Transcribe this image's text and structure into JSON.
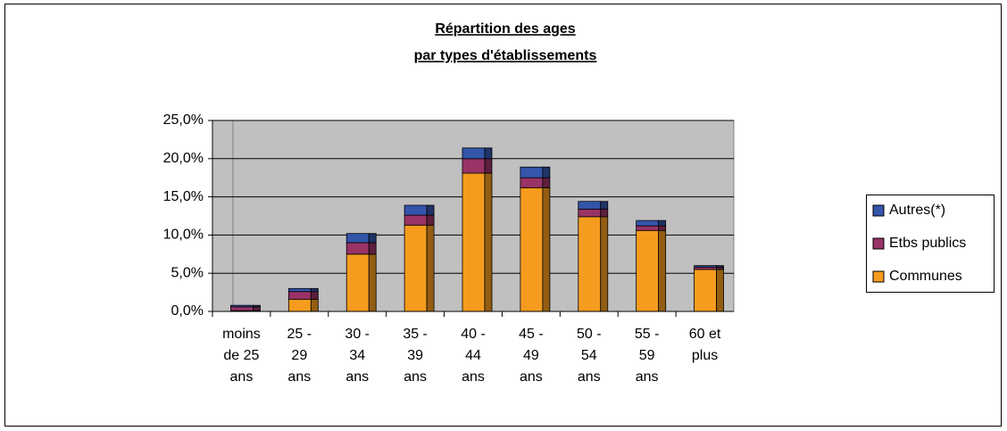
{
  "chart_data": {
    "type": "stacked_bar",
    "title": [
      "Répartition des ages",
      "par types d'établissements"
    ],
    "categories": [
      "moins de 25 ans",
      "25 - 29 ans",
      "30 - 34 ans",
      "35 - 39 ans",
      "40 - 44 ans",
      "45 - 49 ans",
      "50 - 54 ans",
      "55 - 59 ans",
      "60 et plus"
    ],
    "series": [
      {
        "name": "Communes",
        "color": "#f59c1f",
        "values": [
          0.1,
          1.6,
          7.5,
          11.3,
          18.1,
          16.2,
          12.4,
          10.6,
          5.5
        ]
      },
      {
        "name": "Etbs publics",
        "color": "#993366",
        "values": [
          0.5,
          1.0,
          1.5,
          1.3,
          1.9,
          1.3,
          1.0,
          0.6,
          0.3
        ]
      },
      {
        "name": "Autres(*)",
        "color": "#3355aa",
        "values": [
          0.2,
          0.4,
          1.2,
          1.3,
          1.4,
          1.4,
          1.0,
          0.7,
          0.2
        ]
      }
    ],
    "ylim": [
      0,
      25
    ],
    "yticks": [
      {
        "value": 0,
        "label": "0,0%"
      },
      {
        "value": 5,
        "label": "5,0%"
      },
      {
        "value": 10,
        "label": "10,0%"
      },
      {
        "value": 15,
        "label": "15,0%"
      },
      {
        "value": 20,
        "label": "20,0%"
      },
      {
        "value": 25,
        "label": "25,0%"
      }
    ],
    "grid": true,
    "legend": "right"
  }
}
